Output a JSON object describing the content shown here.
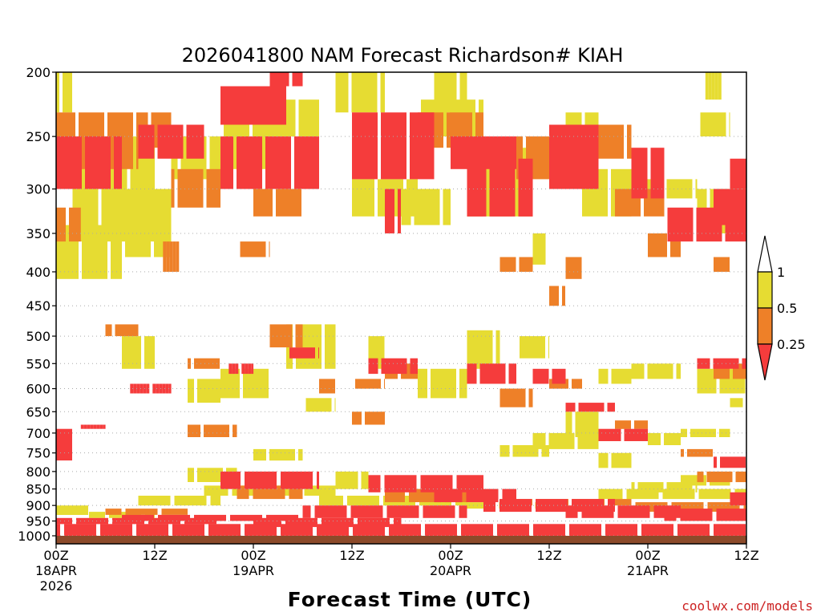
{
  "chart_data": {
    "type": "heatmap",
    "title": "2026041800 NAM Forecast Richardson# KIAH",
    "xlabel": "Forecast Time (UTC)",
    "ylabel": "",
    "credit": "coolwx.com/models",
    "x_range_hours": [
      0,
      84
    ],
    "y_range_hpa": [
      1000,
      200
    ],
    "y_ticks": [
      {
        "value": 200,
        "label": "200"
      },
      {
        "value": 250,
        "label": "250"
      },
      {
        "value": 300,
        "label": "300"
      },
      {
        "value": 350,
        "label": "350"
      },
      {
        "value": 400,
        "label": "400"
      },
      {
        "value": 450,
        "label": "450"
      },
      {
        "value": 500,
        "label": "500"
      },
      {
        "value": 550,
        "label": "550"
      },
      {
        "value": 600,
        "label": "600"
      },
      {
        "value": 650,
        "label": "650"
      },
      {
        "value": 700,
        "label": "700"
      },
      {
        "value": 750,
        "label": "750"
      },
      {
        "value": 800,
        "label": "800"
      },
      {
        "value": 850,
        "label": "850"
      },
      {
        "value": 900,
        "label": "900"
      },
      {
        "value": 950,
        "label": "950"
      },
      {
        "value": 1000,
        "label": "1000"
      }
    ],
    "x_ticks": [
      {
        "hour": 0,
        "lines": [
          "00Z",
          "18APR",
          "2026"
        ]
      },
      {
        "hour": 12,
        "lines": [
          "12Z"
        ]
      },
      {
        "hour": 24,
        "lines": [
          "00Z",
          "19APR"
        ]
      },
      {
        "hour": 36,
        "lines": [
          "12Z"
        ]
      },
      {
        "hour": 48,
        "lines": [
          "00Z",
          "20APR"
        ]
      },
      {
        "hour": 60,
        "lines": [
          "12Z"
        ]
      },
      {
        "hour": 72,
        "lines": [
          "00Z",
          "21APR"
        ]
      },
      {
        "hour": 84,
        "lines": [
          "12Z"
        ]
      }
    ],
    "legend": {
      "placement": "right",
      "labels": [
        "1",
        "0.5",
        "0.25"
      ],
      "bins": [
        {
          "range": "0.5-1",
          "color": "#e6dc32"
        },
        {
          "range": "0.25-0.5",
          "color": "#ee8028"
        },
        {
          "range": "<0.25",
          "color": "#f53c3c"
        }
      ]
    },
    "colors": {
      "ri_0_25": "#f53c3c",
      "ri_0_5": "#ee8028",
      "ri_1": "#e6dc32",
      "ground": "#8c4a2a",
      "grid": "#aaaaaa"
    },
    "series": [
      {
        "name": "Ri < 0.25",
        "cells": [
          [
            4,
            0,
            8,
            300,
            250
          ],
          [
            4,
            10,
            18,
            270,
            240
          ],
          [
            4,
            20,
            32,
            300,
            250
          ],
          [
            3,
            20,
            28,
            240,
            210
          ],
          [
            4,
            26,
            30,
            210,
            200
          ],
          [
            4,
            36,
            46,
            290,
            230
          ],
          [
            4,
            40,
            42,
            350,
            300
          ],
          [
            3,
            48,
            56,
            280,
            250
          ],
          [
            4,
            50,
            58,
            330,
            270
          ],
          [
            3,
            60,
            66,
            300,
            240
          ],
          [
            4,
            62,
            66,
            260,
            240
          ],
          [
            4,
            70,
            74,
            310,
            260
          ],
          [
            4,
            74,
            84,
            360,
            320
          ],
          [
            3,
            80,
            84,
            340,
            300
          ],
          [
            4,
            82,
            84,
            300,
            270
          ],
          [
            4,
            0,
            2,
            770,
            690
          ],
          [
            4,
            3,
            6,
            690,
            680
          ],
          [
            4,
            9,
            14,
            610,
            590
          ],
          [
            4,
            21,
            24,
            570,
            550
          ],
          [
            4,
            28,
            32,
            540,
            520
          ],
          [
            4,
            38,
            44,
            570,
            540
          ],
          [
            4,
            50,
            56,
            590,
            550
          ],
          [
            4,
            58,
            62,
            590,
            560
          ],
          [
            4,
            62,
            68,
            650,
            630
          ],
          [
            4,
            66,
            72,
            720,
            690
          ],
          [
            4,
            78,
            84,
            560,
            540
          ],
          [
            4,
            80,
            84,
            790,
            760
          ],
          [
            4,
            82,
            84,
            900,
            860
          ],
          [
            5,
            20,
            32,
            850,
            800
          ],
          [
            5,
            38,
            52,
            860,
            810
          ],
          [
            5,
            46,
            56,
            890,
            850
          ],
          [
            5,
            52,
            68,
            920,
            880
          ],
          [
            5,
            62,
            76,
            940,
            900
          ],
          [
            5,
            74,
            84,
            950,
            910
          ],
          [
            5,
            0,
            20,
            960,
            940
          ],
          [
            5,
            8,
            30,
            950,
            930
          ],
          [
            5,
            24,
            42,
            970,
            940
          ],
          [
            5,
            30,
            50,
            940,
            900
          ],
          [
            5,
            0,
            84,
            1000,
            960
          ]
        ]
      },
      {
        "name": "0.25 <= Ri < 0.5",
        "cells": [
          [
            4,
            0,
            10,
            280,
            230
          ],
          [
            4,
            10,
            14,
            260,
            230
          ],
          [
            4,
            14,
            20,
            320,
            280
          ],
          [
            4,
            24,
            30,
            330,
            300
          ],
          [
            4,
            44,
            52,
            260,
            230
          ],
          [
            4,
            56,
            60,
            290,
            250
          ],
          [
            4,
            64,
            70,
            270,
            240
          ],
          [
            4,
            68,
            74,
            330,
            300
          ],
          [
            4,
            72,
            76,
            380,
            350
          ],
          [
            4,
            80,
            82,
            400,
            380
          ],
          [
            4,
            0,
            3,
            360,
            320
          ],
          [
            4,
            13,
            15,
            400,
            360
          ],
          [
            4,
            22,
            26,
            380,
            360
          ],
          [
            4,
            54,
            58,
            400,
            380
          ],
          [
            4,
            60,
            62,
            450,
            420
          ],
          [
            4,
            62,
            64,
            410,
            380
          ],
          [
            4,
            6,
            10,
            500,
            480
          ],
          [
            4,
            26,
            30,
            520,
            480
          ],
          [
            4,
            16,
            20,
            560,
            540
          ],
          [
            4,
            32,
            34,
            610,
            580
          ],
          [
            4,
            40,
            44,
            580,
            550
          ],
          [
            4,
            36,
            40,
            600,
            580
          ],
          [
            4,
            54,
            58,
            640,
            600
          ],
          [
            4,
            16,
            22,
            710,
            680
          ],
          [
            4,
            36,
            40,
            680,
            650
          ],
          [
            4,
            60,
            64,
            600,
            580
          ],
          [
            4,
            68,
            72,
            690,
            670
          ],
          [
            4,
            80,
            84,
            580,
            550
          ],
          [
            4,
            76,
            80,
            760,
            740
          ],
          [
            4,
            78,
            84,
            830,
            800
          ],
          [
            5,
            22,
            30,
            880,
            840
          ],
          [
            5,
            40,
            50,
            890,
            850
          ],
          [
            5,
            56,
            70,
            900,
            880
          ],
          [
            5,
            70,
            84,
            920,
            890
          ],
          [
            5,
            6,
            16,
            930,
            910
          ]
        ]
      },
      {
        "name": "0.5 <= Ri < 1",
        "cells": [
          [
            4,
            0,
            2,
            230,
            200
          ],
          [
            4,
            2,
            12,
            360,
            250
          ],
          [
            4,
            0,
            8,
            410,
            340
          ],
          [
            4,
            8,
            14,
            380,
            300
          ],
          [
            4,
            14,
            20,
            290,
            250
          ],
          [
            4,
            20,
            26,
            280,
            230
          ],
          [
            4,
            22,
            24,
            240,
            210
          ],
          [
            4,
            26,
            32,
            250,
            220
          ],
          [
            4,
            34,
            40,
            230,
            200
          ],
          [
            4,
            36,
            44,
            330,
            290
          ],
          [
            4,
            44,
            52,
            250,
            220
          ],
          [
            4,
            42,
            48,
            340,
            300
          ],
          [
            4,
            46,
            50,
            230,
            200
          ],
          [
            4,
            50,
            58,
            330,
            260
          ],
          [
            4,
            58,
            60,
            390,
            350
          ],
          [
            4,
            62,
            66,
            260,
            230
          ],
          [
            4,
            64,
            70,
            330,
            280
          ],
          [
            4,
            70,
            78,
            310,
            290
          ],
          [
            4,
            78,
            84,
            350,
            300
          ],
          [
            4,
            78,
            82,
            250,
            230
          ],
          [
            4,
            79,
            81,
            220,
            200
          ],
          [
            4,
            8,
            12,
            560,
            500
          ],
          [
            4,
            16,
            20,
            630,
            580
          ],
          [
            4,
            20,
            26,
            620,
            560
          ],
          [
            4,
            28,
            34,
            560,
            480
          ],
          [
            4,
            30,
            34,
            650,
            620
          ],
          [
            4,
            38,
            40,
            560,
            500
          ],
          [
            4,
            44,
            50,
            620,
            560
          ],
          [
            4,
            50,
            54,
            560,
            490
          ],
          [
            4,
            56,
            60,
            540,
            500
          ],
          [
            4,
            62,
            66,
            710,
            650
          ],
          [
            4,
            66,
            70,
            590,
            560
          ],
          [
            4,
            70,
            76,
            580,
            550
          ],
          [
            4,
            72,
            76,
            730,
            700
          ],
          [
            4,
            76,
            82,
            710,
            690
          ],
          [
            4,
            78,
            84,
            610,
            560
          ],
          [
            4,
            82,
            84,
            640,
            620
          ],
          [
            4,
            16,
            22,
            830,
            790
          ],
          [
            4,
            24,
            30,
            770,
            740
          ],
          [
            4,
            34,
            38,
            850,
            800
          ],
          [
            4,
            54,
            60,
            760,
            730
          ],
          [
            4,
            58,
            66,
            740,
            700
          ],
          [
            4,
            66,
            70,
            790,
            750
          ],
          [
            4,
            70,
            78,
            860,
            830
          ],
          [
            4,
            76,
            82,
            840,
            810
          ],
          [
            5,
            10,
            20,
            900,
            870
          ],
          [
            5,
            18,
            34,
            870,
            840
          ],
          [
            5,
            32,
            50,
            900,
            870
          ],
          [
            5,
            50,
            60,
            910,
            890
          ],
          [
            5,
            66,
            84,
            880,
            850
          ],
          [
            5,
            0,
            4,
            930,
            900
          ],
          [
            5,
            4,
            12,
            940,
            920
          ]
        ]
      }
    ]
  }
}
